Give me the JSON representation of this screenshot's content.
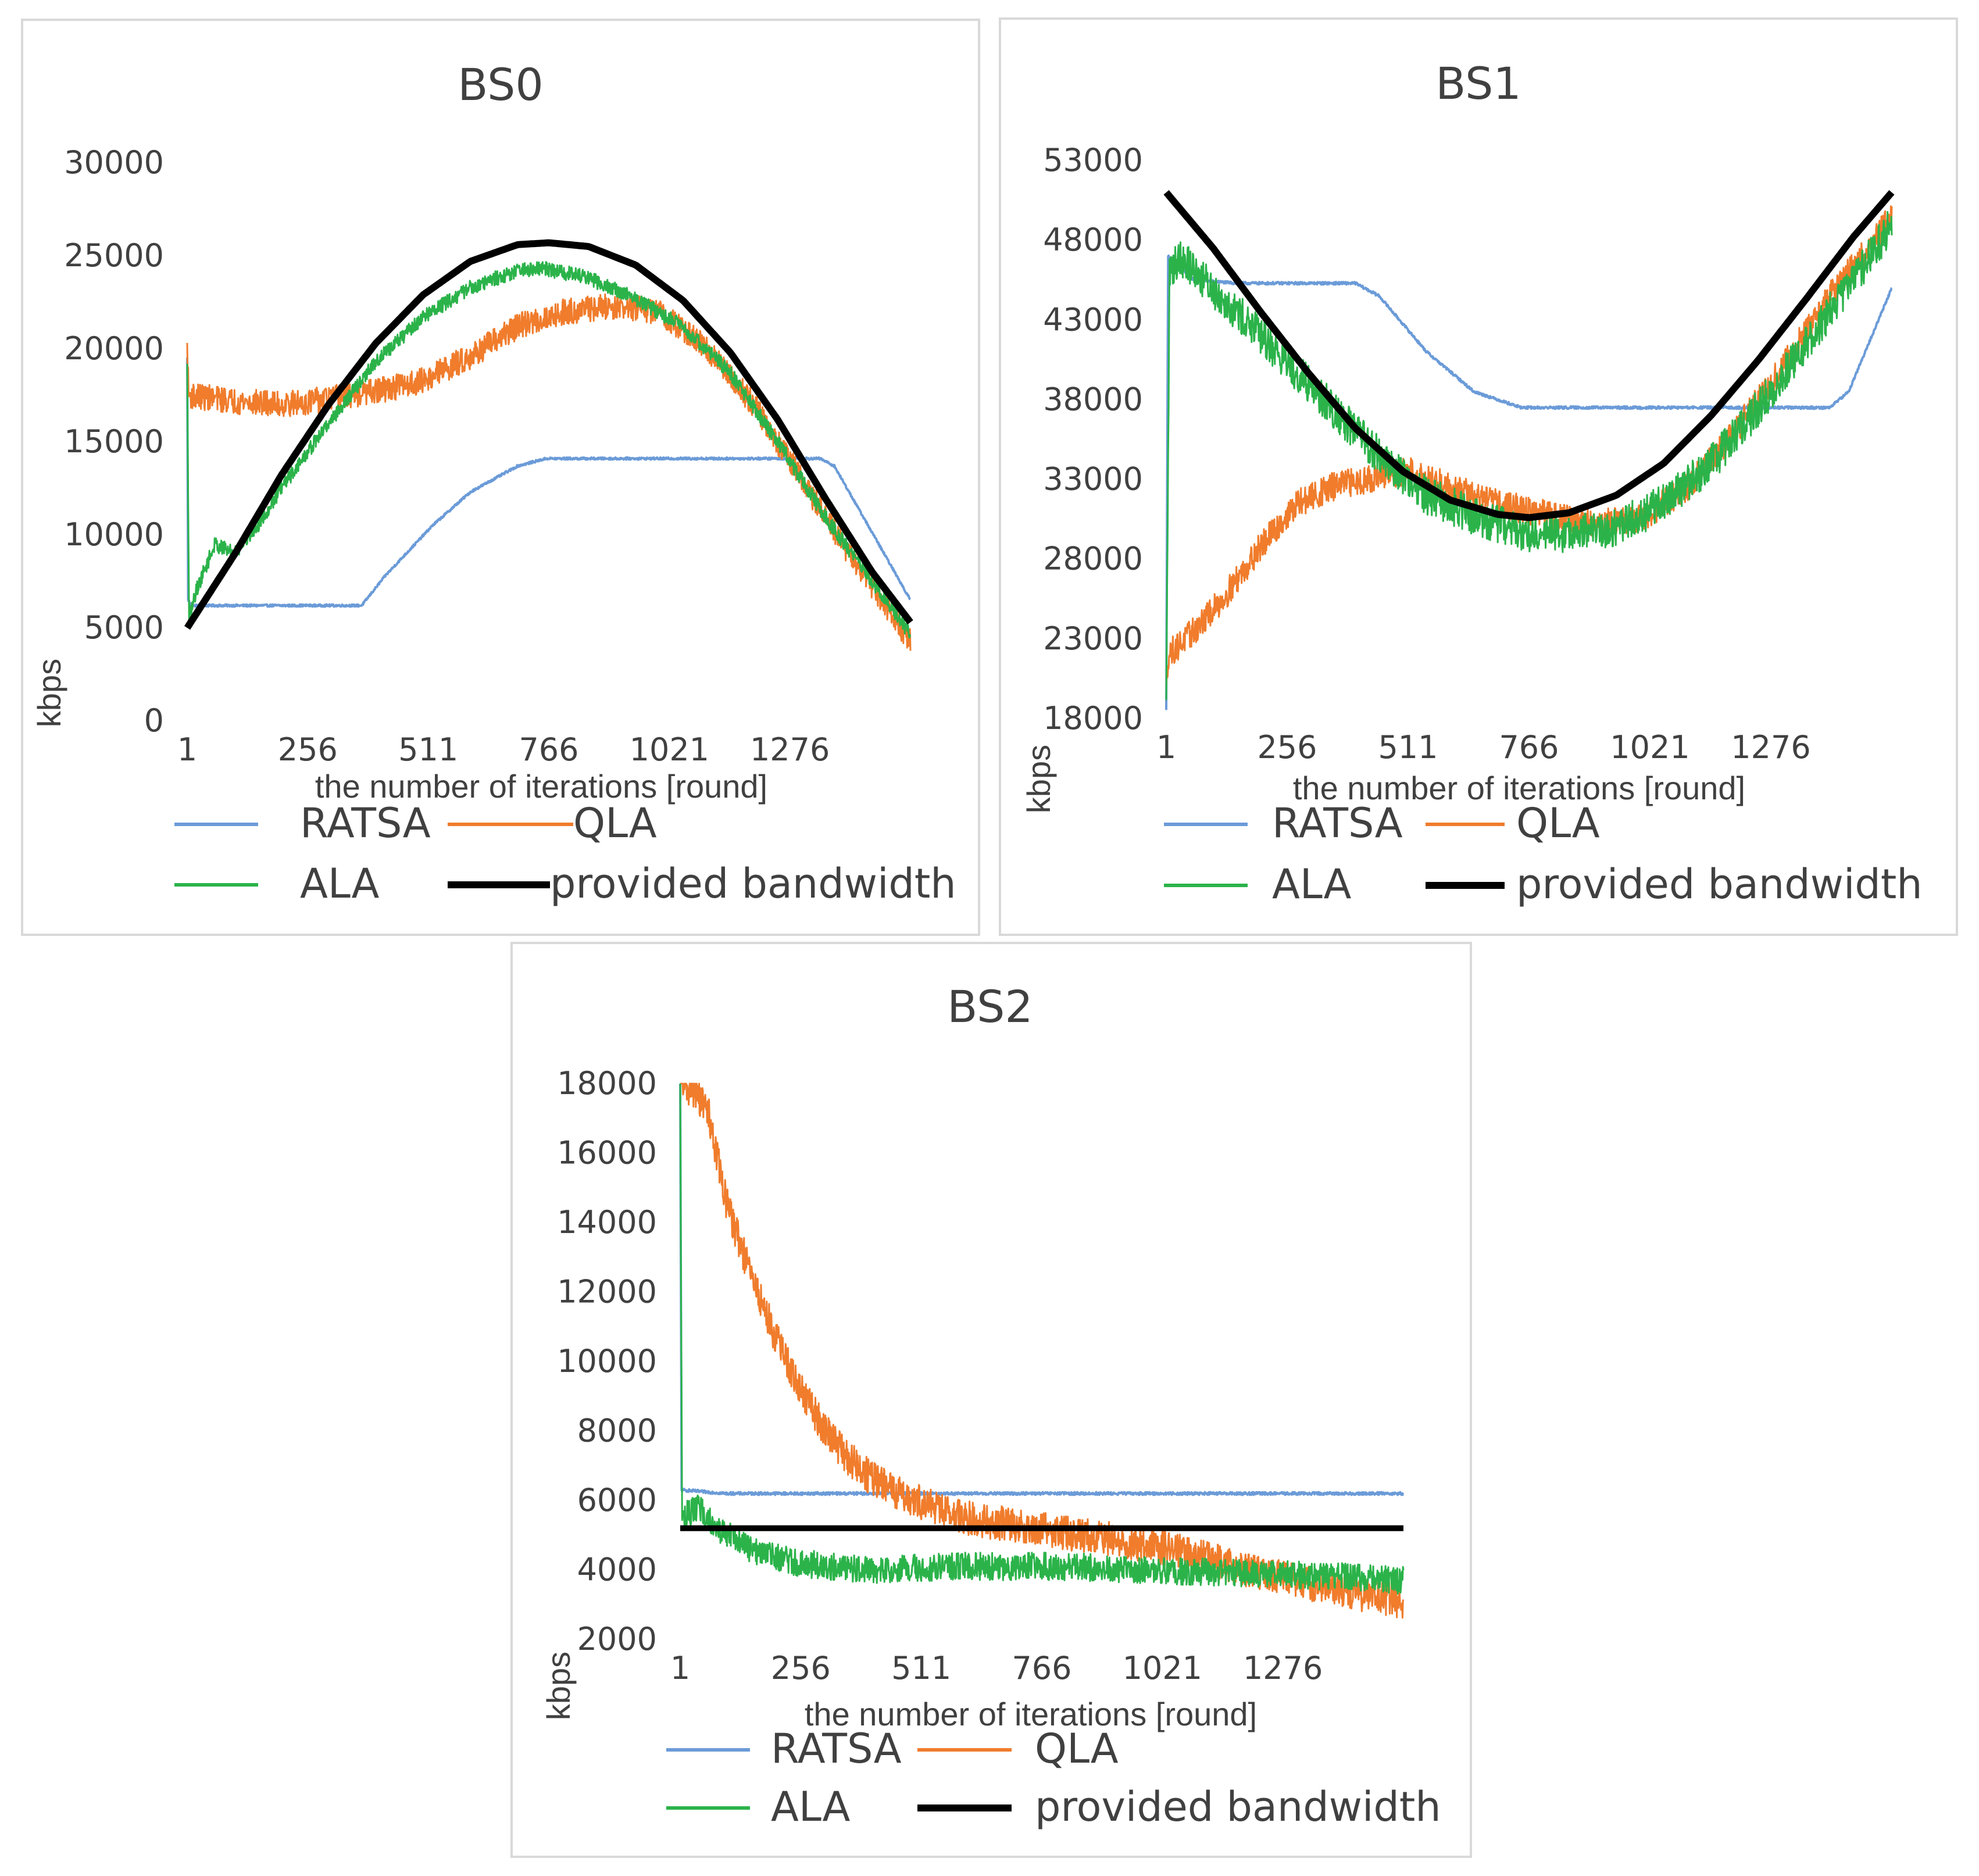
{
  "chart_data": [
    {
      "type": "line",
      "title": "BS0",
      "xlabel": "the number of iterations [round]",
      "ylabel": "kbps",
      "xticks": [
        "1",
        "256",
        "511",
        "766",
        "1021",
        "1276"
      ],
      "yticks": [
        "0",
        "5000",
        "10000",
        "15000",
        "20000",
        "25000",
        "30000"
      ],
      "xlim": [
        1,
        1531
      ],
      "ylim": [
        0,
        30000
      ],
      "grid": false,
      "legend_position": "bottom",
      "series": [
        {
          "name": "RATSA",
          "color": "#6b9bd8",
          "noise": 60,
          "points": [
            [
              1,
              19500
            ],
            [
              3,
              6500
            ],
            [
              10,
              6200
            ],
            [
              370,
              6200
            ],
            [
              420,
              7800
            ],
            [
              520,
              10500
            ],
            [
              600,
              12300
            ],
            [
              700,
              13700
            ],
            [
              760,
              14100
            ],
            [
              1340,
              14100
            ],
            [
              1370,
              13700
            ],
            [
              1531,
              6500
            ]
          ]
        },
        {
          "name": "QLA",
          "color": "#f07c2c",
          "noise": 700,
          "points": [
            [
              1,
              20000
            ],
            [
              4,
              17500
            ],
            [
              100,
              17200
            ],
            [
              200,
              17000
            ],
            [
              300,
              17300
            ],
            [
              400,
              17700
            ],
            [
              500,
              18300
            ],
            [
              600,
              19600
            ],
            [
              700,
              21200
            ],
            [
              800,
              22000
            ],
            [
              900,
              22300
            ],
            [
              1000,
              22000
            ],
            [
              1100,
              20000
            ],
            [
              1200,
              17000
            ],
            [
              1300,
              13000
            ],
            [
              1400,
              9000
            ],
            [
              1500,
              5500
            ],
            [
              1531,
              4200
            ]
          ]
        },
        {
          "name": "ALA",
          "color": "#2bb34a",
          "noise": 400,
          "points": [
            [
              1,
              19000
            ],
            [
              5,
              5500
            ],
            [
              20,
              7000
            ],
            [
              60,
              9500
            ],
            [
              100,
              9000
            ],
            [
              150,
              10500
            ],
            [
              200,
              12500
            ],
            [
              300,
              16000
            ],
            [
              400,
              19300
            ],
            [
              500,
              21700
            ],
            [
              600,
              23300
            ],
            [
              700,
              24200
            ],
            [
              760,
              24300
            ],
            [
              850,
              23800
            ],
            [
              950,
              22700
            ],
            [
              1050,
              21200
            ],
            [
              1150,
              18700
            ],
            [
              1250,
              15000
            ],
            [
              1350,
              11000
            ],
            [
              1450,
              7500
            ],
            [
              1531,
              4600
            ]
          ]
        },
        {
          "name": "provided bandwidth",
          "color": "#000000",
          "width": 12,
          "noise": 0,
          "points": [
            [
              1,
              5000
            ],
            [
              100,
              8900
            ],
            [
              200,
              13200
            ],
            [
              300,
              17000
            ],
            [
              400,
              20300
            ],
            [
              500,
              22900
            ],
            [
              600,
              24700
            ],
            [
              700,
              25600
            ],
            [
              766,
              25700
            ],
            [
              850,
              25500
            ],
            [
              950,
              24500
            ],
            [
              1050,
              22600
            ],
            [
              1150,
              19800
            ],
            [
              1250,
              16200
            ],
            [
              1350,
              12000
            ],
            [
              1450,
              8000
            ],
            [
              1531,
              5300
            ]
          ]
        }
      ]
    },
    {
      "type": "line",
      "title": "BS1",
      "xlabel": "the number of iterations [round]",
      "ylabel": "kbps",
      "xticks": [
        "1",
        "256",
        "511",
        "766",
        "1021",
        "1276"
      ],
      "yticks": [
        "18000",
        "23000",
        "28000",
        "33000",
        "38000",
        "43000",
        "48000",
        "53000"
      ],
      "xlim": [
        1,
        1531
      ],
      "ylim": [
        18000,
        53000
      ],
      "grid": false,
      "legend_position": "bottom",
      "series": [
        {
          "name": "RATSA",
          "color": "#6b9bd8",
          "noise": 80,
          "points": [
            [
              1,
              18500
            ],
            [
              5,
              47000
            ],
            [
              60,
              45500
            ],
            [
              150,
              45300
            ],
            [
              400,
              45300
            ],
            [
              450,
              44500
            ],
            [
              550,
              41000
            ],
            [
              650,
              38500
            ],
            [
              750,
              37500
            ],
            [
              1400,
              37500
            ],
            [
              1440,
              38500
            ],
            [
              1531,
              45000
            ]
          ]
        },
        {
          "name": "QLA",
          "color": "#f07c2c",
          "noise": 900,
          "points": [
            [
              1,
              19500
            ],
            [
              5,
              22000
            ],
            [
              60,
              23500
            ],
            [
              120,
              25500
            ],
            [
              200,
              28800
            ],
            [
              280,
              31500
            ],
            [
              350,
              32500
            ],
            [
              420,
              33000
            ],
            [
              520,
              33500
            ],
            [
              600,
              32500
            ],
            [
              700,
              31500
            ],
            [
              800,
              30800
            ],
            [
              900,
              30300
            ],
            [
              1000,
              30500
            ],
            [
              1100,
              32500
            ],
            [
              1200,
              36000
            ],
            [
              1300,
              40000
            ],
            [
              1400,
              44500
            ],
            [
              1531,
              49500
            ]
          ]
        },
        {
          "name": "ALA",
          "color": "#2bb34a",
          "noise": 1200,
          "points": [
            [
              1,
              18500
            ],
            [
              8,
              46000
            ],
            [
              30,
              47000
            ],
            [
              80,
              45500
            ],
            [
              150,
              43500
            ],
            [
              250,
              40500
            ],
            [
              350,
              37500
            ],
            [
              450,
              34500
            ],
            [
              550,
              32000
            ],
            [
              650,
              30700
            ],
            [
              750,
              29700
            ],
            [
              850,
              29500
            ],
            [
              950,
              30000
            ],
            [
              1050,
              31500
            ],
            [
              1150,
              34000
            ],
            [
              1250,
              37500
            ],
            [
              1350,
              41500
            ],
            [
              1450,
              45500
            ],
            [
              1531,
              49000
            ]
          ]
        },
        {
          "name": "provided bandwidth",
          "color": "#000000",
          "width": 12,
          "noise": 0,
          "points": [
            [
              1,
              51000
            ],
            [
              100,
              47500
            ],
            [
              200,
              43500
            ],
            [
              300,
              39700
            ],
            [
              400,
              36200
            ],
            [
              500,
              33500
            ],
            [
              600,
              31700
            ],
            [
              700,
              30800
            ],
            [
              766,
              30600
            ],
            [
              850,
              30900
            ],
            [
              950,
              32000
            ],
            [
              1050,
              34000
            ],
            [
              1150,
              37000
            ],
            [
              1250,
              40500
            ],
            [
              1350,
              44300
            ],
            [
              1450,
              48200
            ],
            [
              1531,
              51000
            ]
          ]
        }
      ]
    },
    {
      "type": "line",
      "title": "BS2",
      "xlabel": "the number of iterations [round]",
      "ylabel": "kbps",
      "xticks": [
        "1",
        "256",
        "511",
        "766",
        "1021",
        "1276"
      ],
      "yticks": [
        "2000",
        "4000",
        "6000",
        "8000",
        "10000",
        "12000",
        "14000",
        "16000",
        "18000"
      ],
      "xlim": [
        1,
        1531
      ],
      "ylim": [
        2000,
        18000
      ],
      "grid": false,
      "legend_position": "bottom",
      "series": [
        {
          "name": "RATSA",
          "color": "#6b9bd8",
          "noise": 40,
          "points": [
            [
              1,
              18000
            ],
            [
              4,
              6300
            ],
            [
              100,
              6200
            ],
            [
              1531,
              6200
            ]
          ]
        },
        {
          "name": "QLA",
          "color": "#f07c2c",
          "noise": 500,
          "points": [
            [
              1,
              18000
            ],
            [
              30,
              17800
            ],
            [
              60,
              17200
            ],
            [
              100,
              14500
            ],
            [
              150,
              12500
            ],
            [
              200,
              10800
            ],
            [
              250,
              9300
            ],
            [
              300,
              8200
            ],
            [
              350,
              7300
            ],
            [
              400,
              6700
            ],
            [
              450,
              6300
            ],
            [
              500,
              6000
            ],
            [
              600,
              5500
            ],
            [
              700,
              5300
            ],
            [
              800,
              5100
            ],
            [
              900,
              4900
            ],
            [
              1000,
              4700
            ],
            [
              1100,
              4400
            ],
            [
              1200,
              4000
            ],
            [
              1300,
              3700
            ],
            [
              1400,
              3400
            ],
            [
              1531,
              3100
            ]
          ]
        },
        {
          "name": "ALA",
          "color": "#2bb34a",
          "noise": 400,
          "points": [
            [
              1,
              18000
            ],
            [
              5,
              5500
            ],
            [
              40,
              5800
            ],
            [
              80,
              5200
            ],
            [
              150,
              4600
            ],
            [
              250,
              4200
            ],
            [
              400,
              4000
            ],
            [
              600,
              4100
            ],
            [
              800,
              4100
            ],
            [
              1000,
              4000
            ],
            [
              1200,
              3900
            ],
            [
              1400,
              3800
            ],
            [
              1531,
              3700
            ]
          ]
        },
        {
          "name": "provided bandwidth",
          "color": "#000000",
          "width": 10,
          "noise": 0,
          "points": [
            [
              1,
              5200
            ],
            [
              1531,
              5200
            ]
          ]
        }
      ]
    }
  ]
}
